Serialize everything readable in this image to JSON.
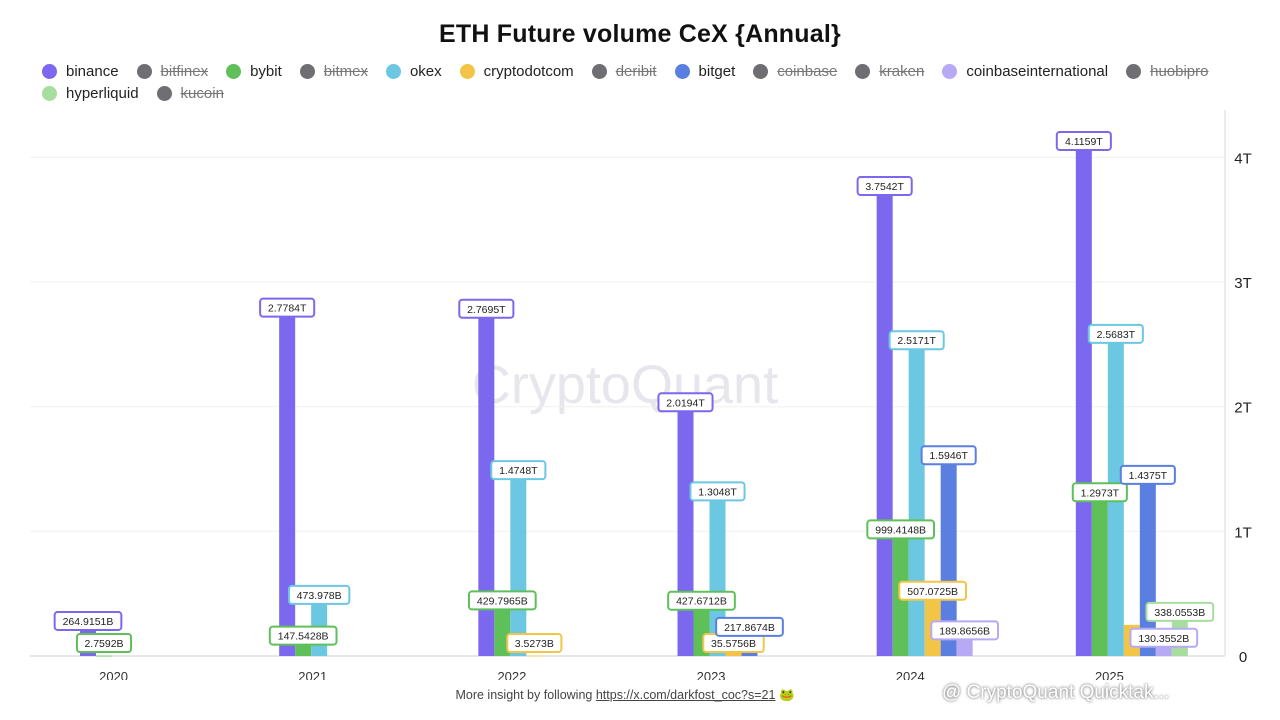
{
  "chart_data": {
    "type": "bar",
    "title": "ETH Future volume CeX {Annual}",
    "categories": [
      "2020",
      "2021",
      "2022",
      "2023",
      "2024",
      "2025"
    ],
    "ylim": [
      0,
      4300000000000
    ],
    "y_ticks": [
      0,
      1000000000000,
      2000000000000,
      3000000000000,
      4000000000000
    ],
    "y_tick_labels": [
      "0",
      "1T",
      "2T",
      "3T",
      "4T"
    ],
    "y_axis_side": "right",
    "grid": true,
    "legend_position": "top",
    "series": [
      {
        "name": "binance",
        "color": "#7b68ee",
        "visible": true,
        "values": [
          264915100000,
          2778400000000,
          2769500000000,
          2019400000000,
          3754200000000,
          4115900000000
        ],
        "labels": [
          "264.9151B",
          "2.7784T",
          "2.7695T",
          "2.0194T",
          "3.7542T",
          "4.1159T"
        ]
      },
      {
        "name": "bitfinex",
        "color": "#6e6e73",
        "visible": false
      },
      {
        "name": "bybit",
        "color": "#5fc05a",
        "visible": true,
        "values": [
          2759200000,
          147542800000,
          429796500000,
          427671200000,
          999414800000,
          1297300000000
        ],
        "labels": [
          "2.7592B",
          "147.5428B",
          "429.7965B",
          "427.6712B",
          "999.4148B",
          "1.2973T"
        ]
      },
      {
        "name": "bitmex",
        "color": "#6e6e73",
        "visible": false
      },
      {
        "name": "okex",
        "color": "#6cc7e3",
        "visible": true,
        "values": [
          null,
          473978000000,
          1474800000000,
          1304800000000,
          2517100000000,
          2568300000000
        ],
        "labels": [
          null,
          "473.978B",
          "1.4748T",
          "1.3048T",
          "2.5171T",
          "2.5683T"
        ]
      },
      {
        "name": "cryptodotcom",
        "color": "#f3c546",
        "visible": true,
        "values": [
          null,
          null,
          3527300000,
          35575600000,
          507072500000,
          250000000000
        ],
        "labels": [
          null,
          null,
          "3.5273B",
          "35.5756B",
          "507.0725B",
          null
        ]
      },
      {
        "name": "deribit",
        "color": "#6e6e73",
        "visible": false
      },
      {
        "name": "bitget",
        "color": "#5b7fe0",
        "visible": true,
        "values": [
          null,
          null,
          null,
          217867400000,
          1594600000000,
          1437500000000
        ],
        "labels": [
          null,
          null,
          null,
          "217.8674B",
          "1.5946T",
          "1.4375T"
        ]
      },
      {
        "name": "coinbase",
        "color": "#6e6e73",
        "visible": false
      },
      {
        "name": "kraken",
        "color": "#6e6e73",
        "visible": false
      },
      {
        "name": "coinbaseinternational",
        "color": "#b7a9f3",
        "visible": true,
        "values": [
          null,
          null,
          null,
          null,
          189865600000,
          130355200000
        ],
        "labels": [
          null,
          null,
          null,
          null,
          "189.8656B",
          "130.3552B"
        ]
      },
      {
        "name": "huobipro",
        "color": "#6e6e73",
        "visible": false
      },
      {
        "name": "hyperliquid",
        "color": "#a8dda0",
        "visible": true,
        "values": [
          null,
          null,
          null,
          null,
          null,
          338055300000
        ],
        "labels": [
          null,
          null,
          null,
          null,
          null,
          "338.0553B"
        ]
      },
      {
        "name": "kucoin",
        "color": "#6e6e73",
        "visible": false
      }
    ]
  },
  "watermark": "CryptoQuant",
  "footer": {
    "text": "More insight by following",
    "link": "https://x.com/darkfost_coc?s=21",
    "emoji": "🐸"
  },
  "corner_watermark": "@ CryptoQuant Quicktak..."
}
